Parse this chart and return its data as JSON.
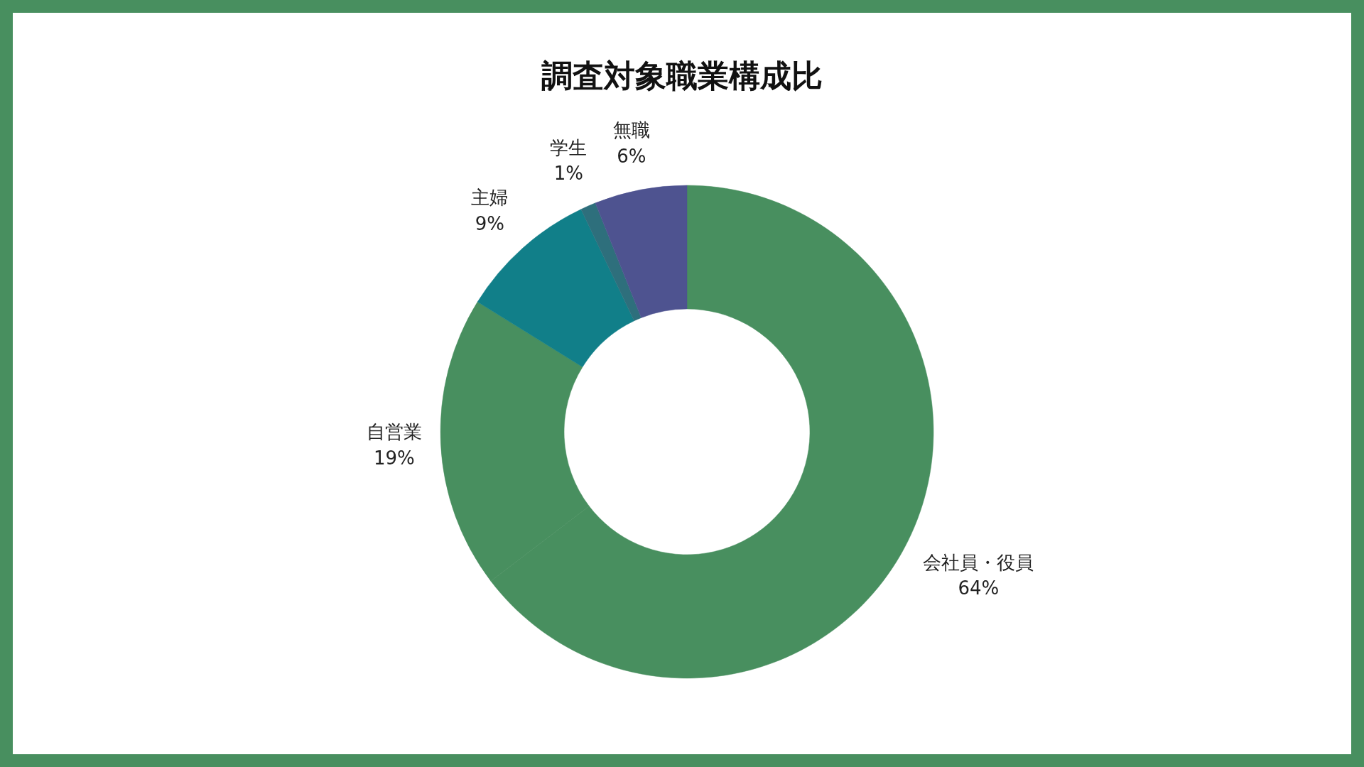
{
  "chart_data": {
    "type": "donut",
    "title": "調査対象職業構成比",
    "categories": [
      "会社員・役員",
      "自営業",
      "主婦",
      "学生",
      "無職"
    ],
    "values": [
      64,
      19,
      9,
      1,
      6
    ],
    "colors": [
      "#488f5f",
      "#488f5f",
      "#117f89",
      "#2e6f7c",
      "#4e5390"
    ],
    "value_labels": [
      "64%",
      "19%",
      "9%",
      "1%",
      "6%"
    ]
  }
}
